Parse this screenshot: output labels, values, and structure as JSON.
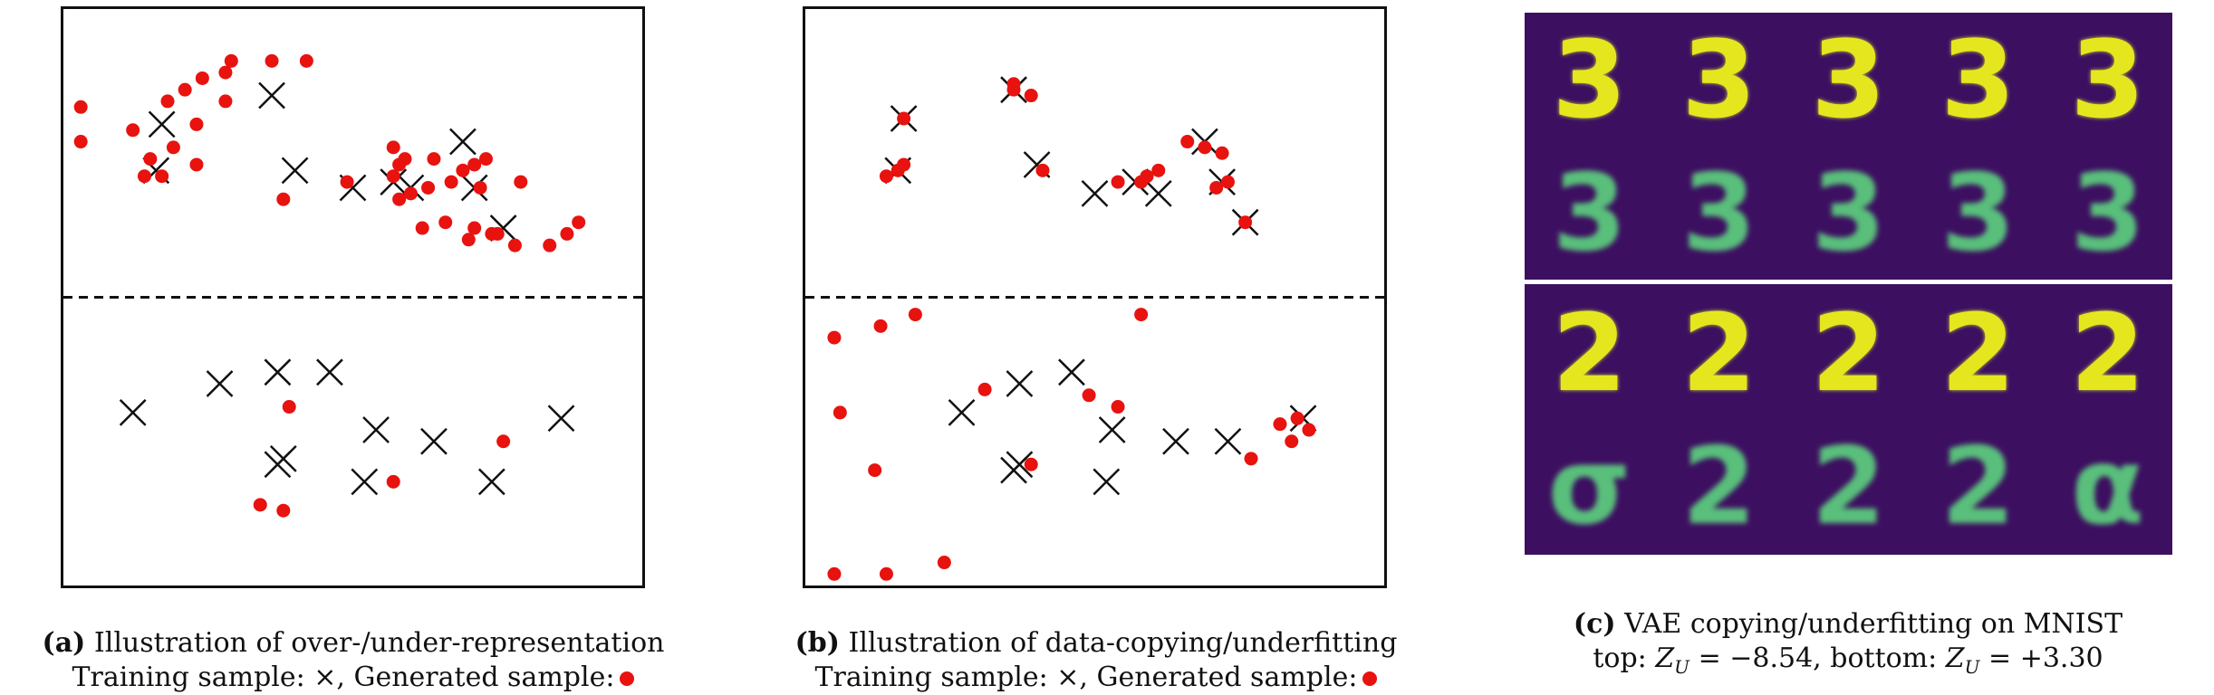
{
  "panel_a": {
    "caption_label": "(a)",
    "caption_title": "Illustration of over-/under-representation",
    "caption_line2": "Training sample: ×, Generated sample:"
  },
  "panel_b": {
    "caption_label": "(b)",
    "caption_title": "Illustration of data-copying/underfitting",
    "caption_line2": "Training sample: ×, Generated sample:"
  },
  "panel_c": {
    "caption_label": "(c)",
    "caption_title": "VAE copying/underfitting on MNIST",
    "caption_line2_prefix": "top: ",
    "caption_zu1_symbol": "Z",
    "caption_zu1_sub": "U",
    "caption_zu1_value": " = −8.54, bottom: ",
    "caption_zu2_symbol": "Z",
    "caption_zu2_sub": "U",
    "caption_zu2_value": " = +3.30",
    "top_real_digits": [
      "3",
      "3",
      "3",
      "3",
      "3"
    ],
    "top_recon_digits": [
      "3",
      "3",
      "3",
      "3",
      "3"
    ],
    "bottom_real_digits": [
      "2",
      "2",
      "2",
      "2",
      "2"
    ],
    "bottom_recon_digits": [
      "σ",
      "2",
      "2",
      "2",
      "α"
    ]
  },
  "colors": {
    "generated": "#e8120f",
    "training": "#111111",
    "mnist_bg": "#3d0f61"
  },
  "chart_data": [
    {
      "type": "scatter",
      "title": "",
      "xlim": [
        0,
        100
      ],
      "ylim": [
        0,
        100
      ],
      "divider_y": 50,
      "series": [
        {
          "marker": "x",
          "points": [
            [
              17,
              80
            ],
            [
              16,
              72
            ],
            [
              36,
              85
            ],
            [
              40,
              72
            ],
            [
              50,
              69
            ],
            [
              57,
              70
            ],
            [
              60,
              69
            ],
            [
              69,
              77
            ],
            [
              71,
              69
            ],
            [
              76,
              62
            ],
            [
              27,
              35
            ],
            [
              37,
              37
            ],
            [
              46,
              37
            ],
            [
              12,
              30
            ],
            [
              54,
              27
            ],
            [
              64,
              25
            ],
            [
              86,
              29
            ],
            [
              38,
              22
            ],
            [
              37,
              21
            ],
            [
              52,
              18
            ],
            [
              74,
              18
            ]
          ]
        },
        {
          "marker": "dot",
          "points": [
            [
              3,
              83
            ],
            [
              3,
              77
            ],
            [
              12,
              79
            ],
            [
              15,
              74
            ],
            [
              14,
              71
            ],
            [
              19,
              76
            ],
            [
              17,
              71
            ],
            [
              18,
              84
            ],
            [
              21,
              86
            ],
            [
              23,
              80
            ],
            [
              24,
              88
            ],
            [
              23,
              73
            ],
            [
              28,
              84
            ],
            [
              28,
              89
            ],
            [
              29,
              91
            ],
            [
              36,
              91
            ],
            [
              42,
              91
            ],
            [
              38,
              67
            ],
            [
              49,
              70
            ],
            [
              57,
              76
            ],
            [
              58,
              73
            ],
            [
              59,
              74
            ],
            [
              57,
              71
            ],
            [
              60,
              68
            ],
            [
              58,
              67
            ],
            [
              63,
              69
            ],
            [
              64,
              74
            ],
            [
              62,
              62
            ],
            [
              66,
              63
            ],
            [
              67,
              70
            ],
            [
              69,
              72
            ],
            [
              71,
              73
            ],
            [
              73,
              74
            ],
            [
              72,
              69
            ],
            [
              70,
              60
            ],
            [
              71,
              62
            ],
            [
              75,
              61
            ],
            [
              74,
              61
            ],
            [
              79,
              70
            ],
            [
              78,
              59
            ],
            [
              84,
              59
            ],
            [
              87,
              61
            ],
            [
              89,
              63
            ],
            [
              39,
              31
            ],
            [
              38,
              13
            ],
            [
              34,
              14
            ],
            [
              57,
              18
            ],
            [
              76,
              25
            ]
          ]
        }
      ]
    },
    {
      "type": "scatter",
      "title": "",
      "xlim": [
        0,
        100
      ],
      "ylim": [
        0,
        100
      ],
      "divider_y": 50,
      "series": [
        {
          "marker": "x",
          "points": [
            [
              17,
              81
            ],
            [
              16,
              72
            ],
            [
              36,
              86
            ],
            [
              40,
              73
            ],
            [
              50,
              68
            ],
            [
              57,
              70
            ],
            [
              61,
              68
            ],
            [
              69,
              77
            ],
            [
              72,
              70
            ],
            [
              76,
              63
            ],
            [
              37,
              35
            ],
            [
              27,
              30
            ],
            [
              46,
              37
            ],
            [
              53,
              27
            ],
            [
              64,
              25
            ],
            [
              73,
              25
            ],
            [
              86,
              29
            ],
            [
              37,
              21
            ],
            [
              36,
              20
            ],
            [
              52,
              18
            ]
          ]
        },
        {
          "marker": "dot",
          "points": [
            [
              17,
              81
            ],
            [
              16,
              72
            ],
            [
              17,
              73
            ],
            [
              14,
              71
            ],
            [
              36,
              86
            ],
            [
              36,
              87
            ],
            [
              39,
              85
            ],
            [
              41,
              72
            ],
            [
              54,
              70
            ],
            [
              58,
              70
            ],
            [
              59,
              71
            ],
            [
              61,
              72
            ],
            [
              66,
              77
            ],
            [
              69,
              76
            ],
            [
              72,
              75
            ],
            [
              71,
              69
            ],
            [
              73,
              70
            ],
            [
              76,
              63
            ],
            [
              5,
              43
            ],
            [
              13,
              45
            ],
            [
              19,
              47
            ],
            [
              58,
              47
            ],
            [
              6,
              30
            ],
            [
              12,
              20
            ],
            [
              31,
              34
            ],
            [
              49,
              33
            ],
            [
              54,
              31
            ],
            [
              39,
              21
            ],
            [
              5,
              2
            ],
            [
              14,
              2
            ],
            [
              24,
              4
            ],
            [
              77,
              22
            ],
            [
              82,
              28
            ],
            [
              84,
              25
            ],
            [
              85,
              29
            ],
            [
              87,
              27
            ]
          ]
        }
      ]
    }
  ]
}
